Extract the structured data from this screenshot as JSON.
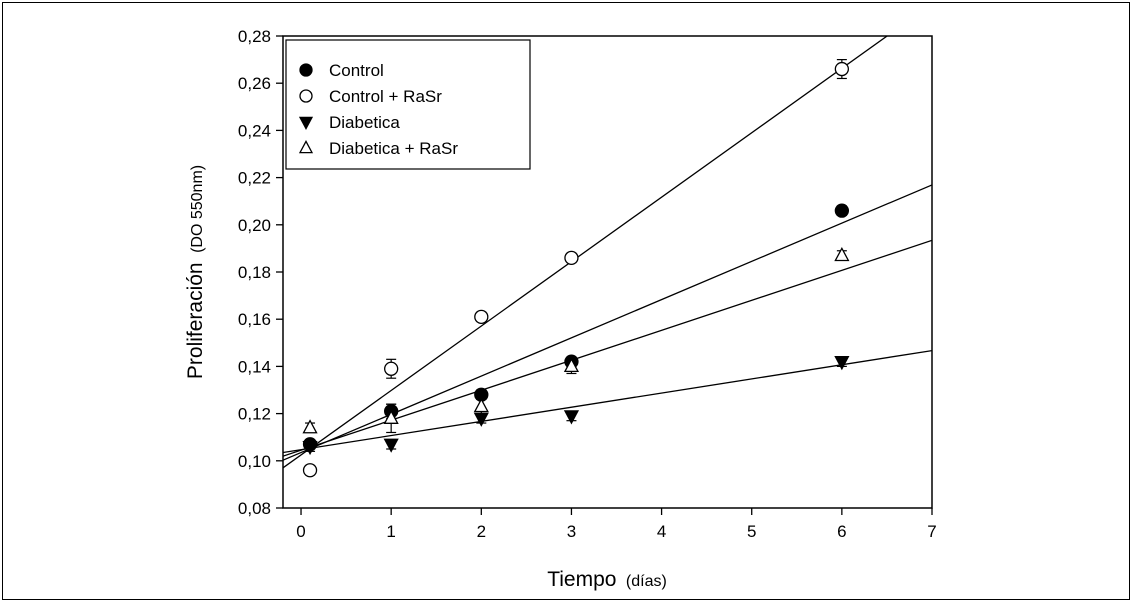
{
  "chart_data": {
    "type": "scatter",
    "xlabel": "Tiempo",
    "xlabel_unit": "(días)",
    "ylabel": "Proliferación",
    "ylabel_unit": "(DO 550nm)",
    "xlim": [
      -0.2,
      7
    ],
    "ylim": [
      0.08,
      0.28
    ],
    "x_ticks": [
      0,
      1,
      2,
      3,
      4,
      5,
      6,
      7
    ],
    "x_tick_labels": [
      "0",
      "1",
      "2",
      "3",
      "4",
      "5",
      "6",
      "7"
    ],
    "y_ticks": [
      0.08,
      0.1,
      0.12,
      0.14,
      0.16,
      0.18,
      0.2,
      0.22,
      0.24,
      0.26,
      0.28
    ],
    "y_tick_labels": [
      "0,08",
      "0,10",
      "0,12",
      "0,14",
      "0,16",
      "0,18",
      "0,20",
      "0,22",
      "0,24",
      "0,26",
      "0,28"
    ],
    "grid": false,
    "legend_position": "top-left",
    "series": [
      {
        "name": "Control",
        "marker": "circle-filled",
        "x": [
          0.1,
          1,
          2,
          3,
          6
        ],
        "y": [
          0.107,
          0.121,
          0.128,
          0.142,
          0.206
        ],
        "error": [
          0.002,
          0.003,
          0.002,
          0.002,
          0.002
        ],
        "fit": [
          0.1035,
          0.0162
        ]
      },
      {
        "name": "Control + RaSr",
        "marker": "circle-open",
        "x": [
          0.1,
          1,
          2,
          3,
          6
        ],
        "y": [
          0.096,
          0.139,
          0.161,
          0.186,
          0.266
        ],
        "error": [
          0.002,
          0.004,
          0.002,
          0.002,
          0.004
        ],
        "fit": [
          0.1025,
          0.0273
        ]
      },
      {
        "name": "Diabetica",
        "marker": "triangle-down-filled",
        "x": [
          0.1,
          1,
          2,
          3,
          6
        ],
        "y": [
          0.106,
          0.107,
          0.118,
          0.119,
          0.142
        ],
        "error": [
          0.002,
          0.002,
          0.002,
          0.002,
          0.002
        ],
        "fit": [
          0.1047,
          0.006
        ]
      },
      {
        "name": "Diabetica + RaSr",
        "marker": "triangle-up-open",
        "x": [
          0.1,
          1,
          2,
          3,
          6
        ],
        "y": [
          0.114,
          0.118,
          0.123,
          0.14,
          0.187
        ],
        "error": [
          0.002,
          0.006,
          0.003,
          0.003,
          0.002
        ],
        "fit": [
          0.1045,
          0.0127
        ]
      }
    ]
  }
}
